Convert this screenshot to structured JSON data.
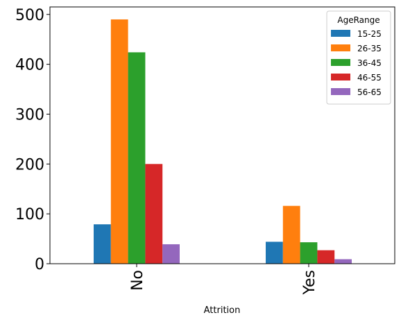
{
  "chart_data": {
    "type": "bar",
    "title": "",
    "xlabel": "Attrition",
    "ylabel": "",
    "categories": [
      "No",
      "Yes"
    ],
    "ylim": [
      0,
      515
    ],
    "yticks": [
      0,
      100,
      200,
      300,
      400,
      500
    ],
    "grid": false,
    "legend": {
      "title": "AgeRange",
      "placement": "top-right"
    },
    "series": [
      {
        "name": "15-25",
        "color": "#1f77b4",
        "values": [
          79,
          44
        ]
      },
      {
        "name": "26-35",
        "color": "#ff7f0e",
        "values": [
          490,
          116
        ]
      },
      {
        "name": "36-45",
        "color": "#2ca02c",
        "values": [
          424,
          43
        ]
      },
      {
        "name": "46-55",
        "color": "#d62728",
        "values": [
          200,
          27
        ]
      },
      {
        "name": "56-65",
        "color": "#9467bd",
        "values": [
          39,
          9
        ]
      }
    ]
  }
}
